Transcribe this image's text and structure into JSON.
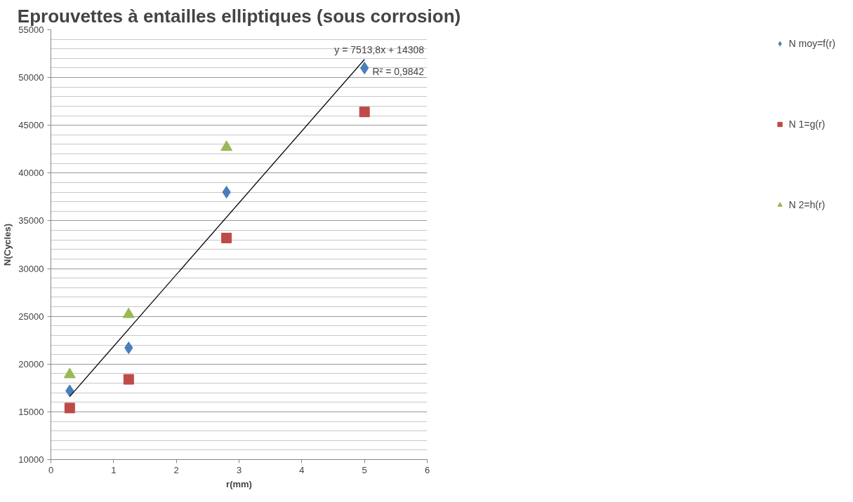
{
  "chart_data": {
    "type": "scatter",
    "title": "Eprouvettes à entailles elliptiques (sous corrosion)",
    "xlabel": "r(mm)",
    "ylabel": "N(Cycles)",
    "x": [
      0.3,
      1.24,
      2.8,
      5.0
    ],
    "series": [
      {
        "name": "N moy=f(r)",
        "color": "#4a7ebb",
        "marker": "diamond",
        "values": [
          17200,
          21700,
          38000,
          51000
        ]
      },
      {
        "name": "N 1=g(r)",
        "color": "#be4b48",
        "marker": "square",
        "values": [
          15400,
          18400,
          33200,
          46400
        ]
      },
      {
        "name": "N 2=h(r)",
        "color": "#98b954",
        "marker": "triangle",
        "values": [
          18900,
          25200,
          42700,
          null
        ]
      },
      {
        "type": "line",
        "color": "#000000",
        "x": [
          0.3,
          5.0
        ],
        "values": [
          16600,
          51900
        ]
      }
    ],
    "annotations": [
      "y = 7513,8x + 14308",
      "R² = 0,9842"
    ],
    "xlim": [
      0,
      6
    ],
    "xticks": [
      0,
      1,
      2,
      3,
      4,
      5,
      6
    ],
    "ylim": [
      10000,
      55000
    ],
    "yticks": [
      10000,
      15000,
      20000,
      25000,
      30000,
      35000,
      40000,
      45000,
      50000,
      55000
    ],
    "grid": "y",
    "legend": "right"
  }
}
